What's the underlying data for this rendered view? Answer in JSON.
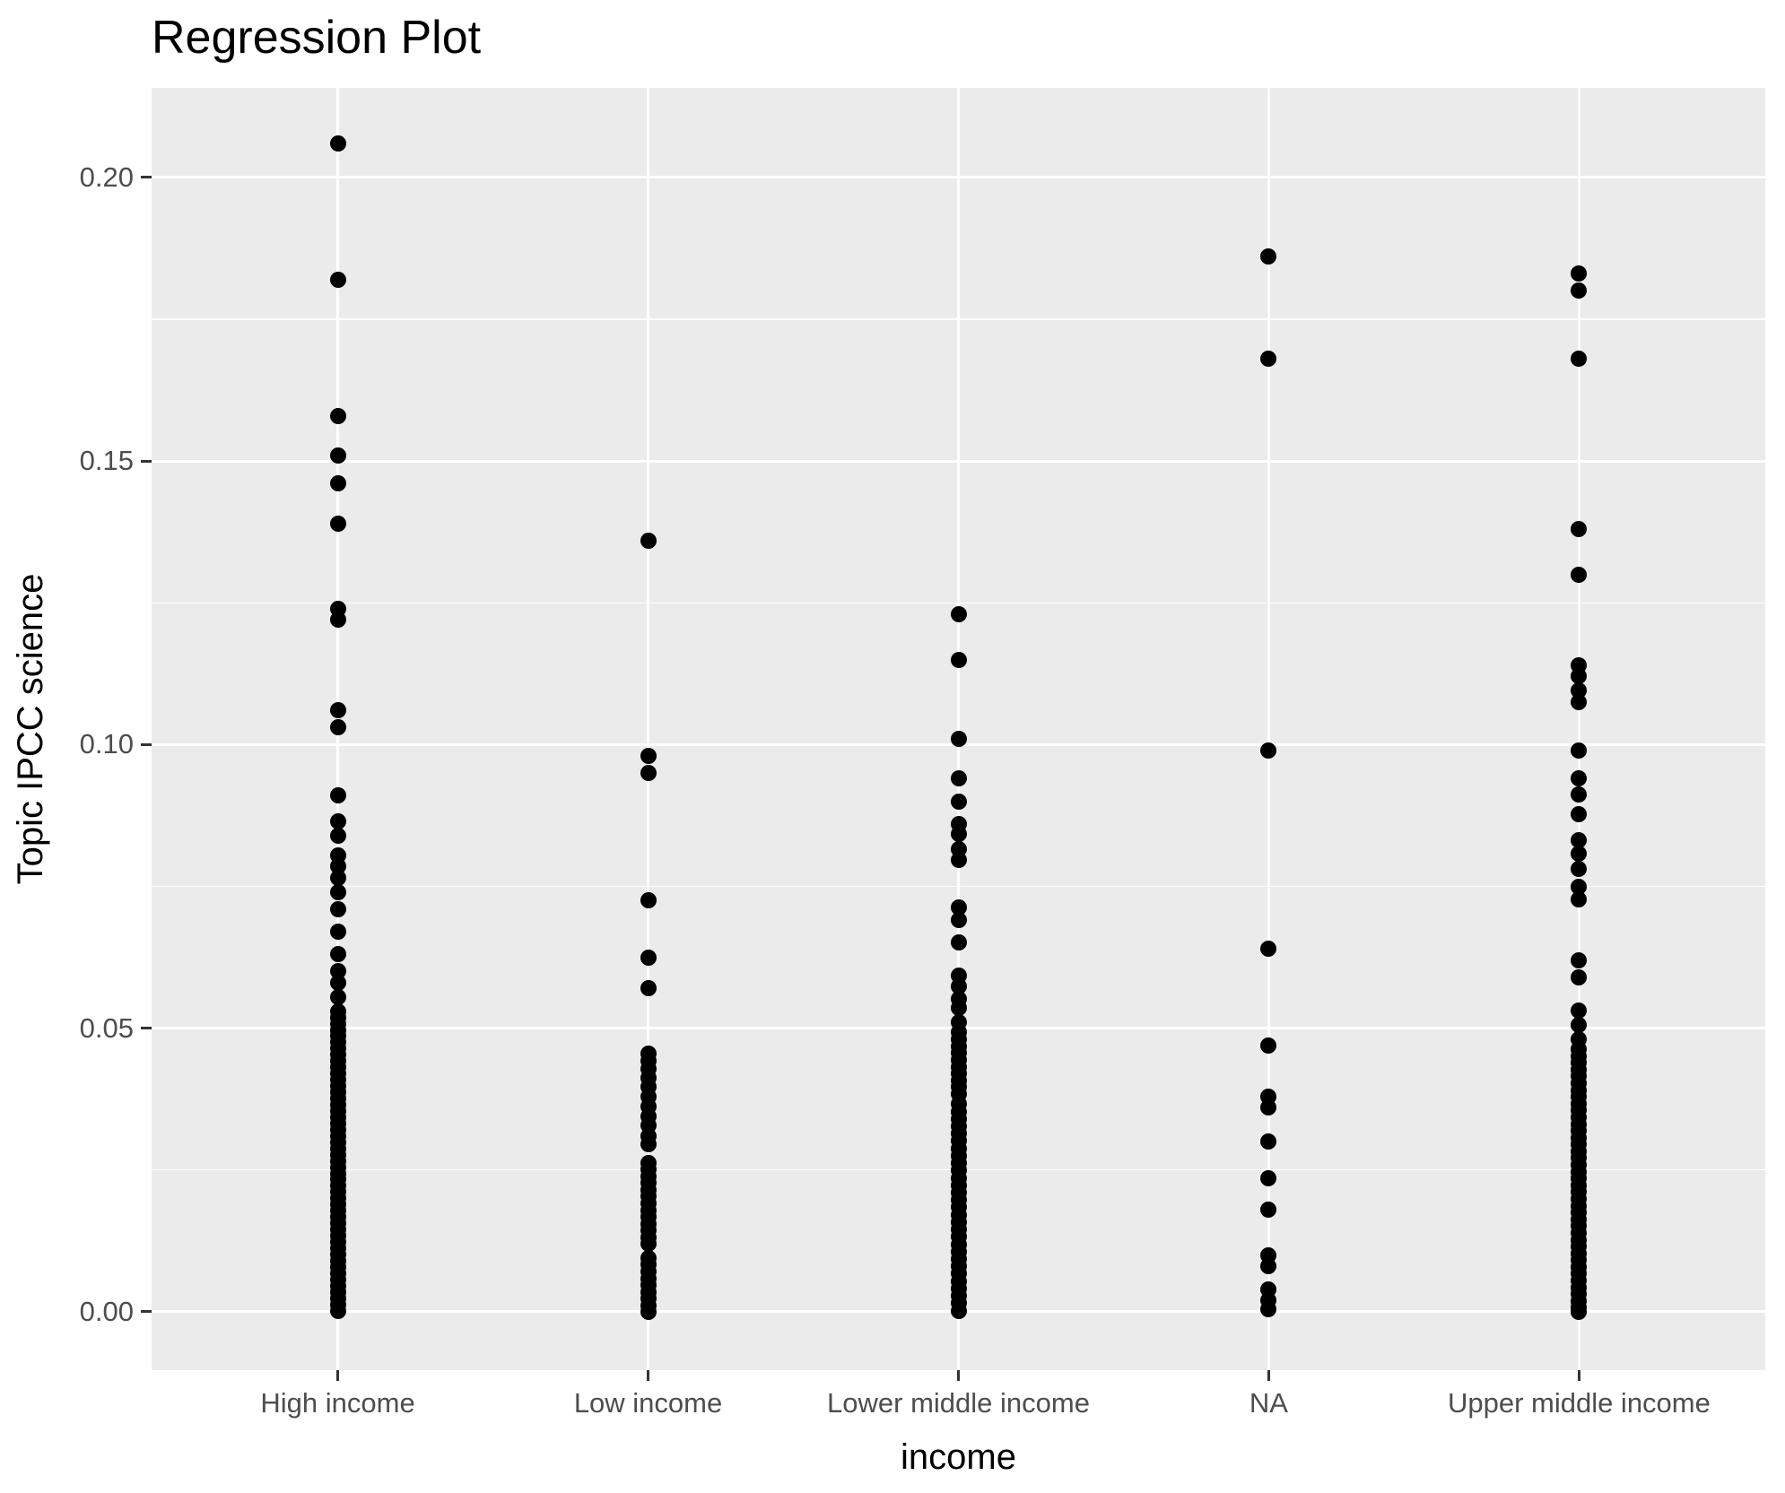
{
  "title": "Regression Plot",
  "axes": {
    "x_title": "income",
    "y_title": "Topic IPCC science",
    "x_tick_labels": [
      "High income",
      "Low income",
      "Lower middle income",
      "NA",
      "Upper middle income"
    ],
    "y_tick_labels": [
      "0.00",
      "0.05",
      "0.10",
      "0.15",
      "0.20"
    ]
  },
  "colors": {
    "panel_background": "#EBEBEB",
    "gridline": "#FFFFFF",
    "tick_mark": "#333333",
    "tick_label": "#4D4D4D",
    "title": "#000000",
    "point": "#000000"
  },
  "chart_data": {
    "type": "scatter",
    "title": "Regression Plot",
    "xlabel": "income",
    "ylabel": "Topic IPCC science",
    "categories": [
      "High income",
      "Low income",
      "Lower middle income",
      "NA",
      "Upper middle income"
    ],
    "ylim": [
      -0.0103,
      0.2158
    ],
    "y_major": [
      0.0,
      0.05,
      0.1,
      0.15,
      0.2
    ],
    "y_minor": [
      0.025,
      0.075,
      0.125,
      0.175
    ],
    "grid": "on",
    "legend": "none",
    "series": [
      {
        "name": "High income",
        "values": [
          0.206,
          0.182,
          0.158,
          0.151,
          0.146,
          0.139,
          0.124,
          0.122,
          0.106,
          0.103,
          0.091,
          0.0865,
          0.084,
          0.0805,
          0.0785,
          0.0765,
          0.074,
          0.071,
          0.067,
          0.063,
          0.06,
          0.058,
          0.0555,
          0.053,
          0.0519,
          0.0508,
          0.0497,
          0.0486,
          0.0475,
          0.0464,
          0.0453,
          0.0442,
          0.0431,
          0.042,
          0.0409,
          0.0398,
          0.0387,
          0.0376,
          0.0365,
          0.0354,
          0.0343,
          0.0332,
          0.0321,
          0.031,
          0.0299,
          0.0288,
          0.0277,
          0.0266,
          0.0255,
          0.0244,
          0.0233,
          0.0222,
          0.0211,
          0.02,
          0.0189,
          0.0178,
          0.0167,
          0.0156,
          0.0145,
          0.0134,
          0.0123,
          0.0112,
          0.0101,
          0.009,
          0.0079,
          0.0068,
          0.0057,
          0.0046,
          0.0035,
          0.0024,
          0.0013,
          0.0002
        ]
      },
      {
        "name": "Low income",
        "values": [
          0.136,
          0.098,
          0.095,
          0.0725,
          0.0625,
          0.057,
          0.0455,
          0.0442,
          0.0428,
          0.0412,
          0.0396,
          0.038,
          0.0362,
          0.0345,
          0.0328,
          0.031,
          0.0295,
          0.0263,
          0.0251,
          0.0239,
          0.0227,
          0.0215,
          0.0203,
          0.0191,
          0.0179,
          0.0167,
          0.0155,
          0.0143,
          0.0131,
          0.012,
          0.0095,
          0.0083,
          0.0071,
          0.0059,
          0.0047,
          0.0035,
          0.0023,
          0.0011,
          0.0
        ]
      },
      {
        "name": "Lower middle income",
        "values": [
          0.123,
          0.115,
          0.101,
          0.094,
          0.09,
          0.086,
          0.0843,
          0.0815,
          0.0797,
          0.0713,
          0.069,
          0.0651,
          0.0592,
          0.0573,
          0.0552,
          0.0535,
          0.0511,
          0.0493,
          0.048,
          0.0468,
          0.0456,
          0.0444,
          0.0432,
          0.042,
          0.0408,
          0.0396,
          0.0384,
          0.0366,
          0.0353,
          0.034,
          0.0327,
          0.0314,
          0.0301,
          0.0288,
          0.0275,
          0.0262,
          0.0249,
          0.0236,
          0.0223,
          0.021,
          0.0197,
          0.0184,
          0.0171,
          0.0158,
          0.0145,
          0.0132,
          0.0119,
          0.0106,
          0.0093,
          0.008,
          0.0067,
          0.0054,
          0.0041,
          0.0028,
          0.0015,
          0.0002
        ]
      },
      {
        "name": "NA",
        "values": [
          0.186,
          0.168,
          0.099,
          0.064,
          0.047,
          0.038,
          0.036,
          0.03,
          0.0235,
          0.018,
          0.01,
          0.008,
          0.004,
          0.002,
          0.0005
        ]
      },
      {
        "name": "Upper middle income",
        "values": [
          0.183,
          0.18,
          0.168,
          0.138,
          0.13,
          0.114,
          0.112,
          0.1095,
          0.1075,
          0.099,
          0.094,
          0.0912,
          0.0878,
          0.0832,
          0.0807,
          0.0781,
          0.075,
          0.0727,
          0.0619,
          0.059,
          0.0531,
          0.0506,
          0.0481,
          0.0463,
          0.0451,
          0.0439,
          0.0427,
          0.0415,
          0.0403,
          0.0391,
          0.0379,
          0.0367,
          0.0355,
          0.0343,
          0.0331,
          0.0319,
          0.0307,
          0.0295,
          0.0283,
          0.0271,
          0.0259,
          0.0247,
          0.0235,
          0.0223,
          0.0211,
          0.0199,
          0.0187,
          0.0175,
          0.0163,
          0.0151,
          0.0139,
          0.0127,
          0.0115,
          0.0103,
          0.0091,
          0.0079,
          0.0067,
          0.0055,
          0.0043,
          0.0031,
          0.0019,
          0.0007,
          0.0
        ]
      }
    ]
  }
}
